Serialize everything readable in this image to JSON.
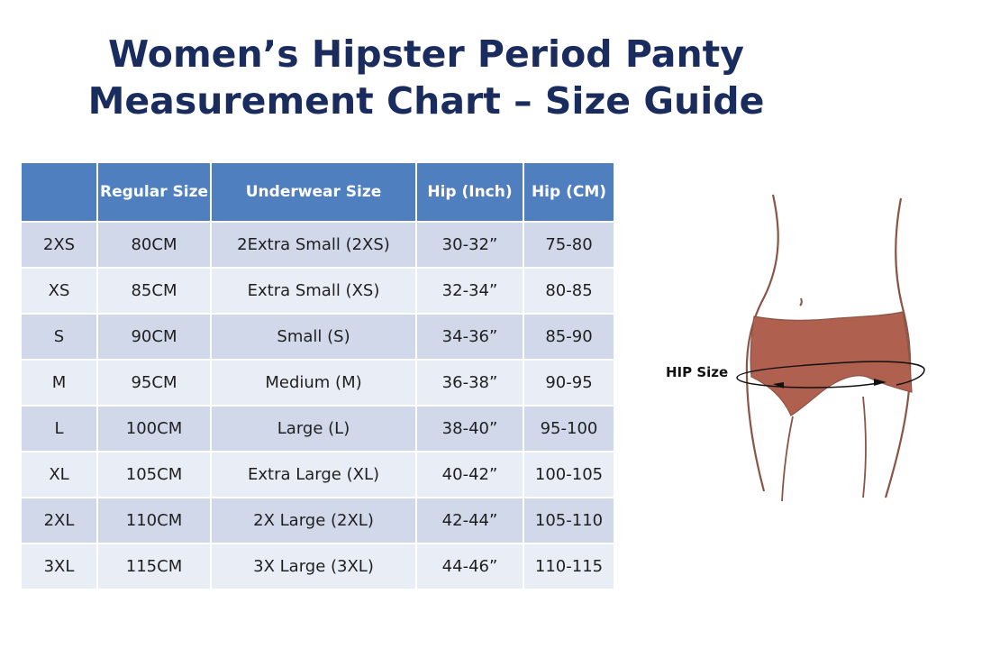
{
  "title": {
    "line1": "Women’s Hipster Period Panty",
    "line2": "Measurement Chart – Size Guide"
  },
  "table": {
    "headers": [
      "",
      "Regular Size",
      "Underwear Size",
      "Hip (Inch)",
      "Hip (CM)"
    ],
    "rows": [
      [
        "2XS",
        "80CM",
        "2Extra Small (2XS)",
        "30-32”",
        "75-80"
      ],
      [
        "XS",
        "85CM",
        "Extra Small (XS)",
        "32-34”",
        "80-85"
      ],
      [
        "S",
        "90CM",
        "Small (S)",
        "34-36”",
        "85-90"
      ],
      [
        "M",
        "95CM",
        "Medium (M)",
        "36-38”",
        "90-95"
      ],
      [
        "L",
        "100CM",
        "Large (L)",
        "38-40”",
        "95-100"
      ],
      [
        "XL",
        "105CM",
        "Extra Large (XL)",
        "40-42”",
        "100-105"
      ],
      [
        "2XL",
        "110CM",
        "2X Large (2XL)",
        "42-44”",
        "105-110"
      ],
      [
        "3XL",
        "115CM",
        "3X Large (3XL)",
        "44-46”",
        "110-115"
      ]
    ]
  },
  "figure": {
    "hip_label": "HIP Size",
    "panty_color": "#b0604f"
  }
}
